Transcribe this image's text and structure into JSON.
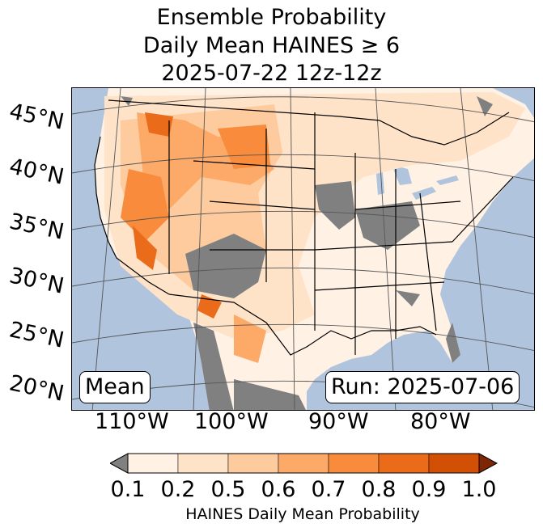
{
  "title": {
    "line1": "Ensemble Probability",
    "line2": "Daily Mean HAINES ≥ 6",
    "line3": "2025-07-22 12z-12z"
  },
  "map": {
    "lat_labels": [
      "45°N",
      "40°N",
      "35°N",
      "30°N",
      "25°N",
      "20°N"
    ],
    "lon_labels": [
      "110°W",
      "100°W",
      "90°W",
      "80°W"
    ],
    "stat_label": "Mean",
    "run_label": "Run: 2025-07-06"
  },
  "colorbar": {
    "label": "HAINES Daily Mean Probability",
    "ticks": [
      "0.1",
      "0.2",
      "0.5",
      "0.6",
      "0.7",
      "0.8",
      "0.9",
      "1.0"
    ],
    "colors": [
      "#fff1e4",
      "#fee3c9",
      "#fdcb9d",
      "#fdaa68",
      "#f88b3c",
      "#ea6b1a",
      "#d24f06"
    ],
    "under_color": "#808080",
    "over_color": "#7f2704"
  },
  "colors": {
    "ocean": "#b0c4de",
    "no_data": "#808080",
    "land": "#fff1e4"
  }
}
